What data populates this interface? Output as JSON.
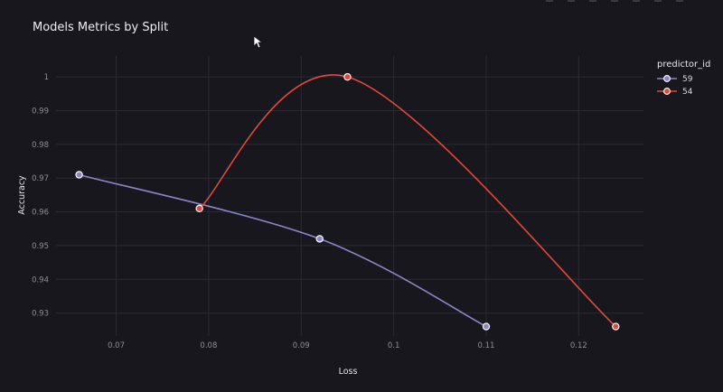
{
  "chart_data": {
    "type": "line",
    "title": "Models Metrics by Split",
    "xlabel": "Loss",
    "ylabel": "Accuracy",
    "xlim": [
      0.0635,
      0.127
    ],
    "ylim": [
      0.9232,
      1.0062
    ],
    "x_ticks": [
      0.07,
      0.08,
      0.09,
      0.1,
      0.11,
      0.12
    ],
    "x_tick_labels": [
      "0.07",
      "0.08",
      "0.09",
      "0.1",
      "0.11",
      "0.12"
    ],
    "y_ticks": [
      0.93,
      0.94,
      0.95,
      0.96,
      0.97,
      0.98,
      0.99,
      1
    ],
    "y_tick_labels": [
      "0.93",
      "0.94",
      "0.95",
      "0.96",
      "0.97",
      "0.98",
      "0.99",
      "1"
    ],
    "grid": true,
    "legend_title": "predictor_id",
    "legend_position": "top-right",
    "series": [
      {
        "name": "59",
        "color": "#8c86c9",
        "points": [
          {
            "x": 0.066,
            "y": 0.971
          },
          {
            "x": 0.092,
            "y": 0.952
          },
          {
            "x": 0.11,
            "y": 0.926
          }
        ]
      },
      {
        "name": "54",
        "color": "#e0493c",
        "points": [
          {
            "x": 0.079,
            "y": 0.961
          },
          {
            "x": 0.095,
            "y": 1.0
          },
          {
            "x": 0.124,
            "y": 0.926
          }
        ]
      }
    ]
  }
}
